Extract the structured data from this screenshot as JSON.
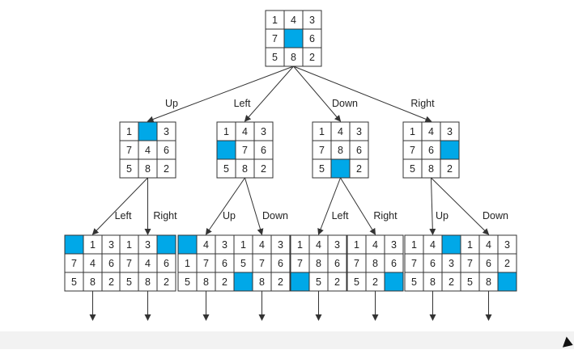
{
  "colors": {
    "blank_tile": "#00a8e8",
    "lines": "#333333",
    "text": "#222222"
  },
  "root": {
    "tiles": [
      "1",
      "4",
      "3",
      "7",
      "",
      "6",
      "5",
      "8",
      "2"
    ]
  },
  "level1": [
    {
      "move": "Up",
      "tiles": [
        "1",
        "",
        "3",
        "7",
        "4",
        "6",
        "5",
        "8",
        "2"
      ]
    },
    {
      "move": "Left",
      "tiles": [
        "1",
        "4",
        "3",
        "",
        "7",
        "6",
        "5",
        "8",
        "2"
      ]
    },
    {
      "move": "Down",
      "tiles": [
        "1",
        "4",
        "3",
        "7",
        "8",
        "6",
        "5",
        "",
        "2"
      ]
    },
    {
      "move": "Right",
      "tiles": [
        "1",
        "4",
        "3",
        "7",
        "6",
        "",
        "5",
        "8",
        "2"
      ]
    }
  ],
  "level2": [
    {
      "parent": 0,
      "move": "Left",
      "tiles": [
        "",
        "1",
        "3",
        "7",
        "4",
        "6",
        "5",
        "8",
        "2"
      ]
    },
    {
      "parent": 0,
      "move": "Right",
      "tiles": [
        "1",
        "3",
        "",
        "7",
        "4",
        "6",
        "5",
        "8",
        "2"
      ]
    },
    {
      "parent": 1,
      "move": "Up",
      "tiles": [
        "",
        "4",
        "3",
        "1",
        "7",
        "6",
        "5",
        "8",
        "2"
      ]
    },
    {
      "parent": 1,
      "move": "Down",
      "tiles": [
        "1",
        "4",
        "3",
        "5",
        "7",
        "6",
        "",
        "8",
        "2"
      ]
    },
    {
      "parent": 2,
      "move": "Left",
      "tiles": [
        "1",
        "4",
        "3",
        "7",
        "8",
        "6",
        "",
        "5",
        "2"
      ]
    },
    {
      "parent": 2,
      "move": "Right",
      "tiles": [
        "1",
        "4",
        "3",
        "7",
        "8",
        "6",
        "5",
        "2",
        ""
      ]
    },
    {
      "parent": 3,
      "move": "Up",
      "tiles": [
        "1",
        "4",
        "",
        "7",
        "6",
        "3",
        "5",
        "8",
        "2"
      ]
    },
    {
      "parent": 3,
      "move": "Down",
      "tiles": [
        "1",
        "4",
        "3",
        "7",
        "6",
        "2",
        "5",
        "8",
        ""
      ]
    }
  ]
}
